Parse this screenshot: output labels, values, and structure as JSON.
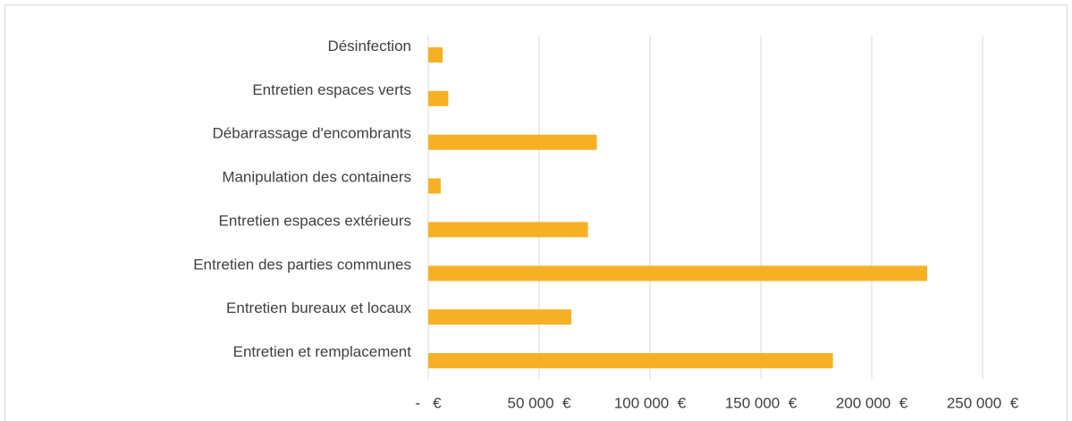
{
  "chart_data": {
    "type": "bar",
    "orientation": "horizontal",
    "categories": [
      "Désinfection",
      "Entretien espaces verts",
      "Débarrassage d'encombrants",
      "Manipulation des containers",
      "Entretien espaces extérieurs",
      "Entretien des parties communes",
      "Entretien bureaux et locaux",
      "Entretien et remplacement"
    ],
    "values": [
      6500,
      9000,
      76000,
      5600,
      72000,
      225000,
      64500,
      182500
    ],
    "color": "#f6b024",
    "xlim": [
      0,
      250000
    ],
    "xticks": [
      {
        "value": 0,
        "label": "-   €"
      },
      {
        "value": 50000,
        "label": "50 000  €"
      },
      {
        "value": 100000,
        "label": "100 000  €"
      },
      {
        "value": 150000,
        "label": "150 000  €"
      },
      {
        "value": 200000,
        "label": "200 000  €"
      },
      {
        "value": 250000,
        "label": "250 000  €"
      }
    ],
    "grid": true
  }
}
